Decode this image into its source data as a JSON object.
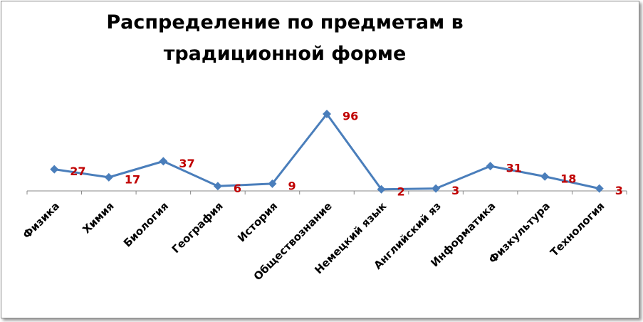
{
  "chart_data": {
    "type": "line",
    "title": "Распределение по предметам в традиционной форме",
    "categories": [
      "Физика",
      "Химия",
      "Биология",
      "География",
      "История",
      "Обществознание",
      "Немецкий язык",
      "Английский яз",
      "Информатика",
      "Физкультура",
      "Технология"
    ],
    "series": [
      {
        "color": "#4a7ebb",
        "label_color": "#c00000",
        "values": [
          27,
          17,
          37,
          6,
          9,
          96,
          2,
          3,
          31,
          18,
          3
        ]
      }
    ]
  }
}
